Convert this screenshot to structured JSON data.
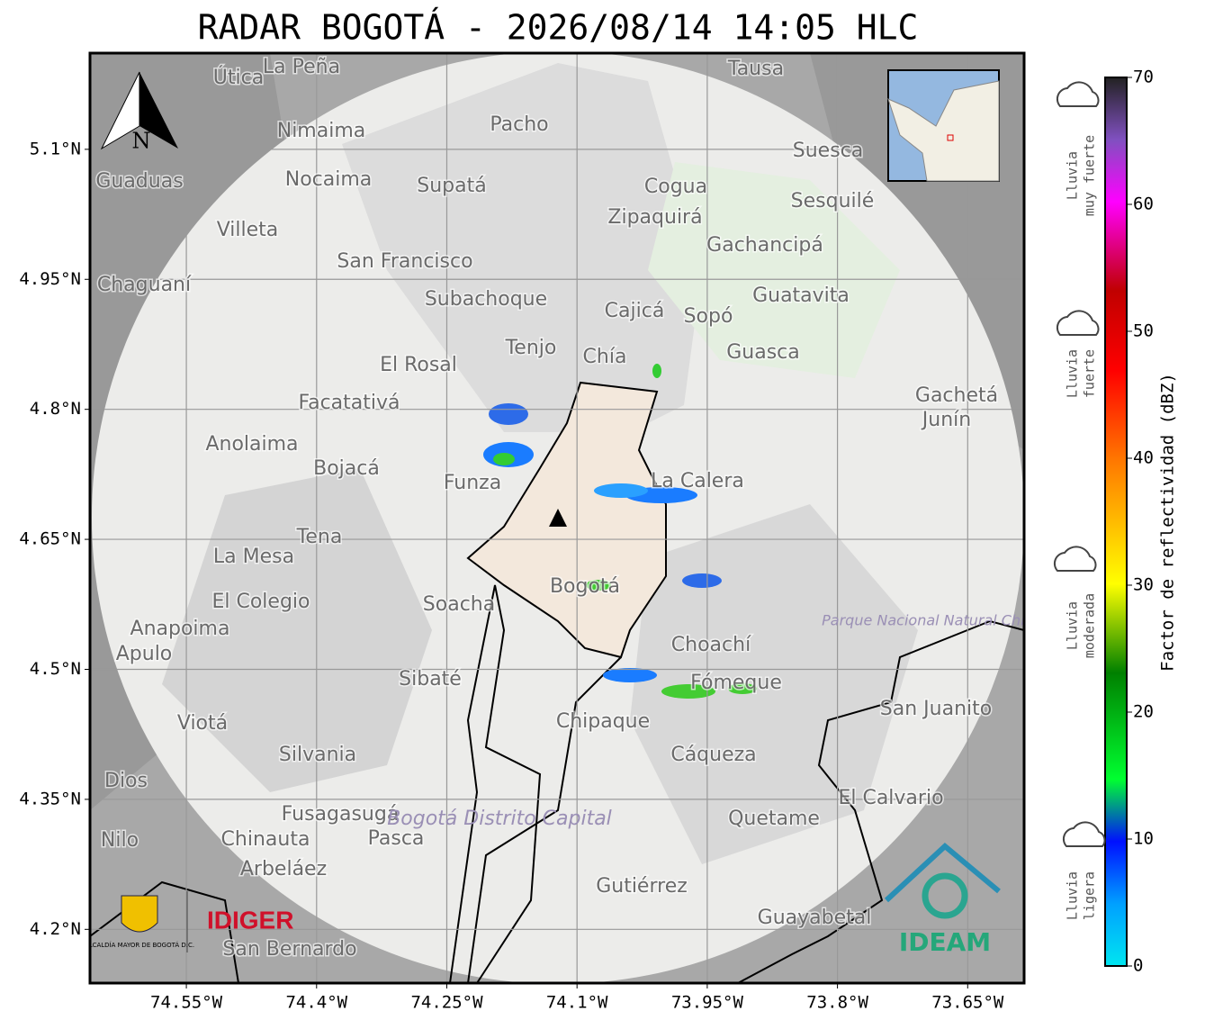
{
  "title": "RADAR BOGOTÁ - 2026/08/14 14:05 HLC",
  "map": {
    "xlim": [
      -74.661,
      -73.585
    ],
    "ylim": [
      4.138,
      5.211
    ],
    "xticks": [
      {
        "value": -74.55,
        "label": "74.55°W"
      },
      {
        "value": -74.4,
        "label": "74.4°W"
      },
      {
        "value": -74.25,
        "label": "74.25°W"
      },
      {
        "value": -74.1,
        "label": "74.1°W"
      },
      {
        "value": -73.95,
        "label": "73.95°W"
      },
      {
        "value": -73.8,
        "label": "73.8°W"
      },
      {
        "value": -73.65,
        "label": "73.65°W"
      }
    ],
    "yticks": [
      {
        "value": 5.1,
        "label": "5.1°N"
      },
      {
        "value": 4.95,
        "label": "4.95°N"
      },
      {
        "value": 4.8,
        "label": "4.8°N"
      },
      {
        "value": 4.65,
        "label": "4.65°N"
      },
      {
        "value": 4.5,
        "label": "4.5°N"
      },
      {
        "value": 4.35,
        "label": "4.35°N"
      },
      {
        "value": 4.2,
        "label": "4.2°N"
      }
    ],
    "grid": true,
    "north": "N",
    "places": [
      "La Peña",
      "Útica",
      "Tausa",
      "Pacho",
      "Nimaima",
      "Nocaima",
      "Guaduas",
      "Supatá",
      "Cogua",
      "Suesca",
      "Sesquilé",
      "Zipaquirá",
      "Villeta",
      "Gachancipá",
      "San Francisco",
      "Chaguaní",
      "Guatavita",
      "Subachoque",
      "Cajicá",
      "Sopó",
      "Tenjo",
      "Guasca",
      "Chía",
      "El Rosal",
      "Gachetá",
      "Junín",
      "Facatativá",
      "Anolaima",
      "Bojacá",
      "Funza",
      "La Calera",
      "Tena",
      "La Mesa",
      "Bogotá",
      "Soacha",
      "El Colegio",
      "Anapoima",
      "Apulo",
      "Choachí",
      "Sibaté",
      "Fómeque",
      "San Juanito",
      "Chipaque",
      "Viotá",
      "Silvania",
      "Cáqueza",
      "Dios",
      "El Calvario",
      "Fusagasugá",
      "Quetame",
      "Nilo",
      "Chinauta",
      "Pasca",
      "Arbeláez",
      "Gutiérrez",
      "Guayabetal",
      "San Bernardo"
    ],
    "areas": [
      "Parque Nacional Natural Chingaza",
      "Bogotá Distrito Capital"
    ]
  },
  "colorbar": {
    "lim": [
      0,
      70
    ],
    "ticks": [
      0,
      10,
      20,
      30,
      40,
      50,
      60,
      70
    ],
    "label": "Factor de reflectividad (dBZ)"
  },
  "rain_levels": [
    [
      "Lluvia",
      "muy fuerte"
    ],
    [
      "Lluvia",
      "fuerte"
    ],
    [
      "Lluvia",
      "moderada"
    ],
    [
      "Lluvia",
      "ligera"
    ]
  ],
  "logos": {
    "alcaldia": "ALCALDÍA MAYOR DE BOGOTÁ D.C.",
    "idiger": "IDIGER",
    "ideam": "IDEAM"
  }
}
